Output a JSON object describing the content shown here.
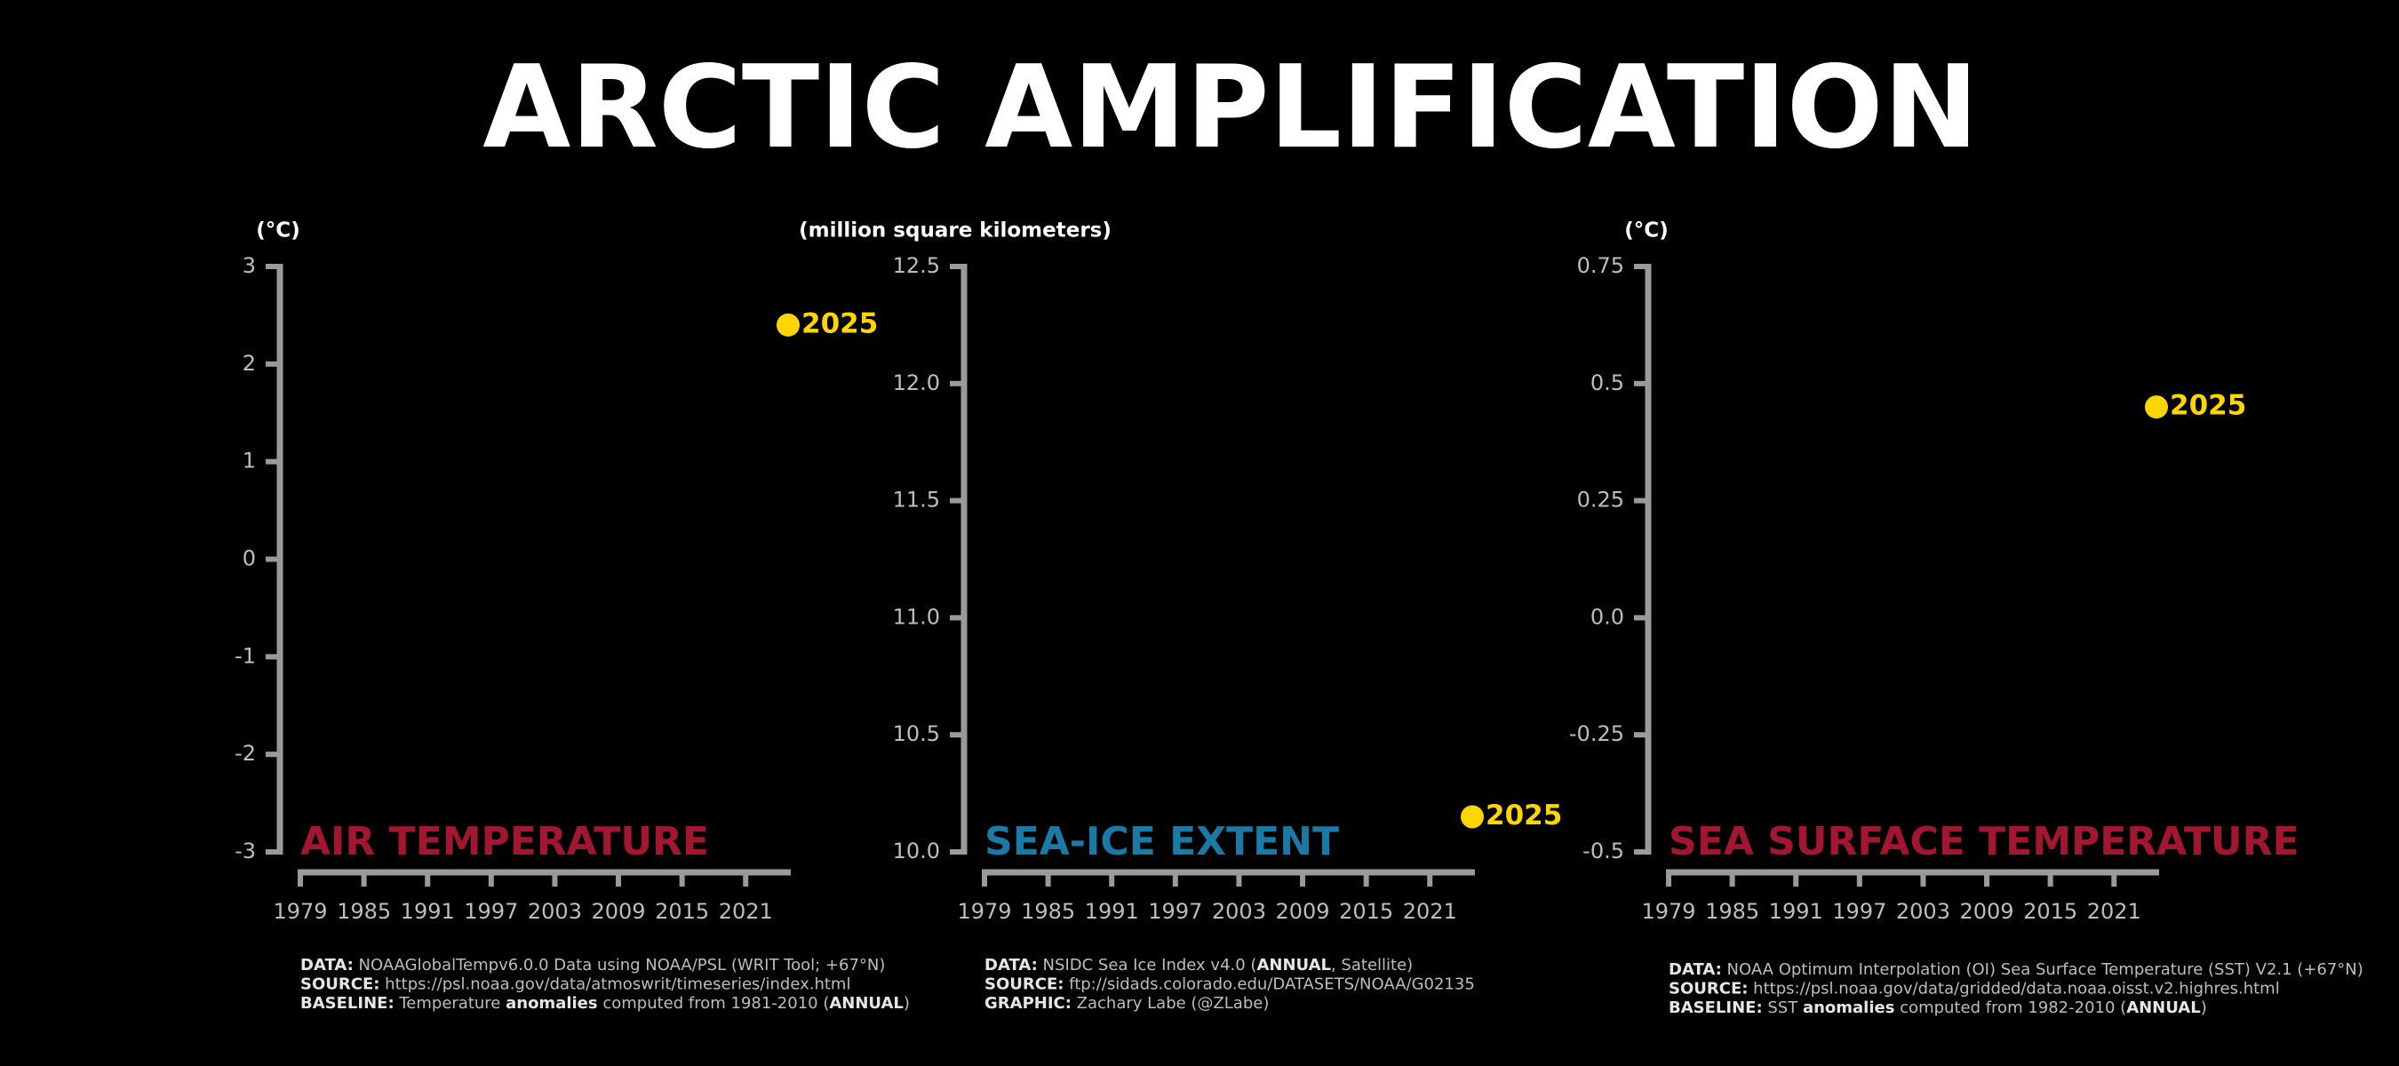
{
  "title": "ARCTIC AMPLIFICATION",
  "chart_data": [
    {
      "type": "scatter",
      "title": "AIR TEMPERATURE",
      "title_color": "#a3162f",
      "y_label": "(°C)",
      "x": [
        2025
      ],
      "values": [
        2.4
      ],
      "color": "#ffd500",
      "xlim": [
        1979,
        2025
      ],
      "xticks": [
        1979,
        1985,
        1991,
        1997,
        2003,
        2009,
        2015,
        2021
      ],
      "ylim": [
        -3,
        3
      ],
      "yticks": [
        -3,
        -2,
        -1,
        0,
        1,
        2,
        3
      ],
      "notes": [
        [
          {
            "text": "DATA:",
            "bold": true
          },
          {
            "text": " NOAAGlobalTempv6.0.0 Data using NOAA/PSL (WRIT Tool; +67°N)",
            "bold": false
          }
        ],
        [
          {
            "text": "SOURCE:",
            "bold": true
          },
          {
            "text": " https://psl.noaa.gov/data/atmoswrit/timeseries/index.html",
            "bold": false
          }
        ],
        [
          {
            "text": "BASELINE:",
            "bold": true
          },
          {
            "text": " Temperature ",
            "bold": false
          },
          {
            "text": "anomalies",
            "bold": true
          },
          {
            "text": " computed from 1981-2010 (",
            "bold": false
          },
          {
            "text": "ANNUAL",
            "bold": true
          },
          {
            "text": ")",
            "bold": false
          }
        ]
      ]
    },
    {
      "type": "scatter",
      "title": "SEA-ICE EXTENT",
      "title_color": "#1a7aa6",
      "y_label": "(million square kilometers)",
      "x": [
        2025
      ],
      "values": [
        10.15
      ],
      "color": "#ffd500",
      "xlim": [
        1979,
        2025
      ],
      "xticks": [
        1979,
        1985,
        1991,
        1997,
        2003,
        2009,
        2015,
        2021
      ],
      "ylim": [
        10,
        12.5
      ],
      "yticks": [
        {
          "value": 10,
          "label": "10.0"
        },
        10.5,
        {
          "value": 11,
          "label": "11.0"
        },
        11.5,
        {
          "value": 12,
          "label": "12.0"
        },
        12.5
      ],
      "notes": [
        [
          {
            "text": "DATA:",
            "bold": true
          },
          {
            "text": " NSIDC Sea Ice Index v4.0 (",
            "bold": false
          },
          {
            "text": "ANNUAL",
            "bold": true
          },
          {
            "text": ", Satellite)",
            "bold": false
          }
        ],
        [
          {
            "text": "SOURCE:",
            "bold": true
          },
          {
            "text": " ftp://sidads.colorado.edu/DATASETS/NOAA/G02135",
            "bold": false
          }
        ],
        [
          {
            "text": "GRAPHIC:",
            "bold": true
          },
          {
            "text": " Zachary Labe (@ZLabe)",
            "bold": false
          }
        ]
      ]
    },
    {
      "type": "scatter",
      "title": "SEA SURFACE TEMPERATURE",
      "title_color": "#a3162f",
      "y_label": "(°C)",
      "x": [
        2025
      ],
      "values": [
        0.45
      ],
      "color": "#ffd500",
      "xlim": [
        1979,
        2025
      ],
      "xticks": [
        1979,
        1985,
        1991,
        1997,
        2003,
        2009,
        2015,
        2021
      ],
      "ylim": [
        -0.5,
        0.75
      ],
      "yticks": [
        -0.5,
        -0.25,
        {
          "value": 0,
          "label": "0.0"
        },
        0.25,
        0.5,
        0.75
      ],
      "notes": [
        [
          {
            "text": "DATA:",
            "bold": true
          },
          {
            "text": " NOAA Optimum Interpolation (OI) Sea Surface Temperature (SST) V2.1 (+67°N)",
            "bold": false
          }
        ],
        [
          {
            "text": "SOURCE:",
            "bold": true
          },
          {
            "text": " https://psl.noaa.gov/data/gridded/data.noaa.oisst.v2.highres.html",
            "bold": false
          }
        ],
        [
          {
            "text": "BASELINE:",
            "bold": true
          },
          {
            "text": " SST ",
            "bold": false
          },
          {
            "text": "anomalies",
            "bold": true
          },
          {
            "text": " computed from 1982-2010 (",
            "bold": false
          },
          {
            "text": "ANNUAL",
            "bold": true
          },
          {
            "text": ")",
            "bold": false
          }
        ]
      ]
    }
  ]
}
